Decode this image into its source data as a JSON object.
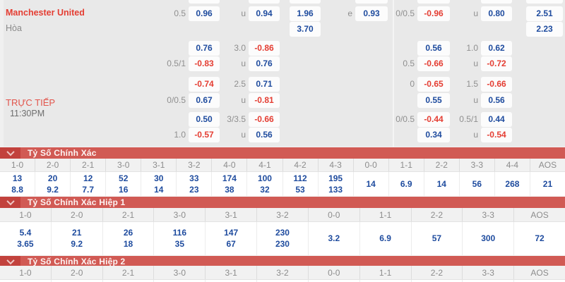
{
  "colors": {
    "odds_positive": "#1e4b9e",
    "odds_negative": "#e43d32",
    "section_bar": "#d15a54",
    "section_bar_dark": "#c2423d",
    "panel_background": "#e9e9e9"
  },
  "match": {
    "home_team": "Manchester United",
    "draw_label": "Hòa",
    "live_label": "TRỰC TIẾP",
    "time": "11:30PM"
  },
  "odds_rows": [
    {
      "cells": {
        "lbl1": "0.5",
        "odds1": "0.96",
        "lbl2": "u",
        "odds2": "0.94",
        "x2": "1.96",
        "lbl3": "e",
        "odds3": "0.93",
        "rlbl1": "0/0.5",
        "rodds1": "-0.96",
        "rlbl2": "u",
        "rodds2": "0.80",
        "rlast": "2.51"
      }
    },
    {
      "cells": {
        "x2": "3.70",
        "rlast": "2.23"
      }
    },
    {
      "cells": {
        "odds1": "0.76",
        "lbl2": "3.0",
        "odds2": "-0.86",
        "rodds1": "0.56",
        "rlbl2": "1.0",
        "rodds2": "0.62"
      }
    },
    {
      "cells": {
        "lbl1": "0.5/1",
        "odds1": "-0.83",
        "lbl2": "u",
        "odds2": "0.76",
        "rlbl1": "0.5",
        "rodds1": "-0.66",
        "rlbl2": "u",
        "rodds2": "-0.72"
      }
    },
    {
      "cells": {
        "odds1": "-0.74",
        "lbl2": "2.5",
        "odds2": "0.71",
        "rlbl1": "0",
        "rodds1": "-0.65",
        "rlbl2": "1.5",
        "rodds2": "-0.66"
      }
    },
    {
      "cells": {
        "lbl1": "0/0.5",
        "odds1": "0.67",
        "lbl2": "u",
        "odds2": "-0.81",
        "rodds1": "0.55",
        "rlbl2": "u",
        "rodds2": "0.56"
      }
    },
    {
      "cells": {
        "odds1": "0.50",
        "lbl2": "3/3.5",
        "odds2": "-0.66",
        "rlbl1": "0/0.5",
        "rodds1": "-0.44",
        "rlbl2": "0.5/1",
        "rodds2": "0.44"
      }
    },
    {
      "cells": {
        "lbl1": "1.0",
        "odds1": "-0.57",
        "lbl2": "u",
        "odds2": "0.56",
        "rodds1": "0.34",
        "rlbl2": "u",
        "rodds2": "-0.54"
      }
    }
  ],
  "sections": [
    {
      "title": "Tỷ Số Chính Xác",
      "columns": [
        {
          "score": "1-0",
          "values": [
            "13",
            "8.8"
          ]
        },
        {
          "score": "2-0",
          "values": [
            "20",
            "9.2"
          ]
        },
        {
          "score": "2-1",
          "values": [
            "12",
            "7.7"
          ]
        },
        {
          "score": "3-0",
          "values": [
            "52",
            "16"
          ]
        },
        {
          "score": "3-1",
          "values": [
            "30",
            "14"
          ]
        },
        {
          "score": "3-2",
          "values": [
            "33",
            "23"
          ]
        },
        {
          "score": "4-0",
          "values": [
            "174",
            "38"
          ]
        },
        {
          "score": "4-1",
          "values": [
            "100",
            "32"
          ]
        },
        {
          "score": "4-2",
          "values": [
            "112",
            "53"
          ]
        },
        {
          "score": "4-3",
          "values": [
            "195",
            "133"
          ]
        },
        {
          "score": "0-0",
          "values": [
            "14"
          ]
        },
        {
          "score": "1-1",
          "values": [
            "6.9"
          ]
        },
        {
          "score": "2-2",
          "values": [
            "14"
          ]
        },
        {
          "score": "3-3",
          "values": [
            "56"
          ]
        },
        {
          "score": "4-4",
          "values": [
            "268"
          ]
        },
        {
          "score": "AOS",
          "values": [
            "21"
          ]
        }
      ]
    },
    {
      "title": "Tỷ Số Chính Xác Hiệp 1",
      "columns": [
        {
          "score": "1-0",
          "values": [
            "5.4",
            "3.65"
          ]
        },
        {
          "score": "2-0",
          "values": [
            "21",
            "9.2"
          ]
        },
        {
          "score": "2-1",
          "values": [
            "26",
            "18"
          ]
        },
        {
          "score": "3-0",
          "values": [
            "116",
            "35"
          ]
        },
        {
          "score": "3-1",
          "values": [
            "147",
            "67"
          ]
        },
        {
          "score": "3-2",
          "values": [
            "230",
            "230"
          ]
        },
        {
          "score": "0-0",
          "values": [
            "3.2"
          ]
        },
        {
          "score": "1-1",
          "values": [
            "6.9"
          ]
        },
        {
          "score": "2-2",
          "values": [
            "57"
          ]
        },
        {
          "score": "3-3",
          "values": [
            "300"
          ]
        },
        {
          "score": "AOS",
          "values": [
            "72"
          ]
        }
      ]
    },
    {
      "title": "Tỷ Số Chính Xác Hiệp 2",
      "columns": [
        {
          "score": "1-0",
          "values": []
        },
        {
          "score": "2-0",
          "values": []
        },
        {
          "score": "2-1",
          "values": []
        },
        {
          "score": "3-0",
          "values": []
        },
        {
          "score": "3-1",
          "values": []
        },
        {
          "score": "3-2",
          "values": []
        },
        {
          "score": "0-0",
          "values": []
        },
        {
          "score": "1-1",
          "values": []
        },
        {
          "score": "2-2",
          "values": []
        },
        {
          "score": "3-3",
          "values": []
        },
        {
          "score": "AOS",
          "values": []
        }
      ]
    }
  ]
}
